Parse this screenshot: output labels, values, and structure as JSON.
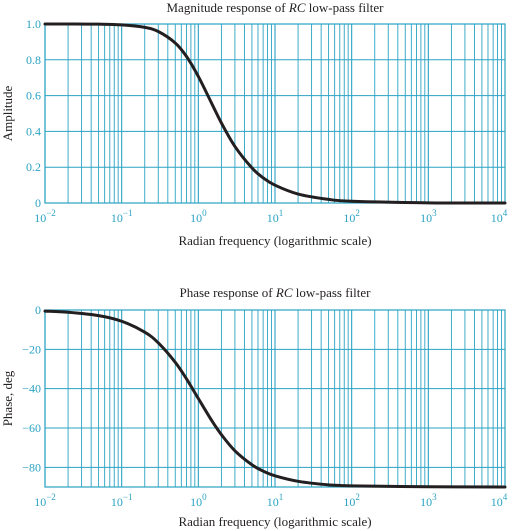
{
  "chart_data": [
    {
      "type": "line",
      "title_prefix": "Magnitude response of ",
      "title_emph": "RC",
      "title_suffix": " low-pass filter",
      "xlabel": "Radian frequency (logarithmic scale)",
      "ylabel": "Amplitude",
      "xscale": "log",
      "xlim": [
        0.01,
        10000
      ],
      "ylim": [
        0,
        1
      ],
      "grid": true,
      "x_ticks": [
        {
          "value": 0.01,
          "base": "10",
          "exp": "−2"
        },
        {
          "value": 0.1,
          "base": "10",
          "exp": "−1"
        },
        {
          "value": 1,
          "base": "10",
          "exp": "0"
        },
        {
          "value": 10,
          "base": "10",
          "exp": "1"
        },
        {
          "value": 100,
          "base": "10",
          "exp": "2"
        },
        {
          "value": 1000,
          "base": "10",
          "exp": "3"
        },
        {
          "value": 10000,
          "base": "10",
          "exp": "4"
        }
      ],
      "y_ticks": [
        {
          "value": 0,
          "label": "0"
        },
        {
          "value": 0.2,
          "label": "0.2"
        },
        {
          "value": 0.4,
          "label": "0.4"
        },
        {
          "value": 0.6,
          "label": "0.6"
        },
        {
          "value": 0.8,
          "label": "0.8"
        },
        {
          "value": 1,
          "label": "1.0"
        }
      ],
      "series": [
        {
          "x": [
            0.01,
            0.02,
            0.05,
            0.1,
            0.2,
            0.3,
            0.5,
            0.7,
            1,
            1.5,
            2,
            3,
            5,
            7,
            10,
            20,
            50,
            100,
            1000,
            10000
          ],
          "y": [
            1.0,
            1.0,
            0.999,
            0.995,
            0.981,
            0.958,
            0.894,
            0.819,
            0.707,
            0.555,
            0.447,
            0.316,
            0.196,
            0.141,
            0.0995,
            0.05,
            0.02,
            0.01,
            0.001,
            0.0001
          ]
        }
      ]
    },
    {
      "type": "line",
      "title_prefix": "Phase response of ",
      "title_emph": "RC",
      "title_suffix": " low-pass filter",
      "xlabel": "Radian frequency (logarithmic scale)",
      "ylabel": "Phase, deg",
      "xscale": "log",
      "xlim": [
        0.01,
        10000
      ],
      "ylim": [
        -90,
        0
      ],
      "grid": true,
      "x_ticks": [
        {
          "value": 0.01,
          "base": "10",
          "exp": "−2"
        },
        {
          "value": 0.1,
          "base": "10",
          "exp": "−1"
        },
        {
          "value": 1,
          "base": "10",
          "exp": "0"
        },
        {
          "value": 10,
          "base": "10",
          "exp": "1"
        },
        {
          "value": 100,
          "base": "10",
          "exp": "2"
        },
        {
          "value": 1000,
          "base": "10",
          "exp": "3"
        },
        {
          "value": 10000,
          "base": "10",
          "exp": "4"
        }
      ],
      "y_ticks": [
        {
          "value": 0,
          "label": "0"
        },
        {
          "value": -20,
          "label": "−20"
        },
        {
          "value": -40,
          "label": "−40"
        },
        {
          "value": -60,
          "label": "−60"
        },
        {
          "value": -80,
          "label": "−80"
        }
      ],
      "series": [
        {
          "x": [
            0.01,
            0.02,
            0.05,
            0.1,
            0.2,
            0.3,
            0.5,
            0.7,
            1,
            1.5,
            2,
            3,
            5,
            7,
            10,
            20,
            50,
            100,
            1000,
            10000
          ],
          "y": [
            -0.57,
            -1.15,
            -2.86,
            -5.71,
            -11.3,
            -16.7,
            -26.6,
            -35.0,
            -45.0,
            -56.3,
            -63.4,
            -71.6,
            -78.7,
            -81.9,
            -84.3,
            -87.1,
            -88.9,
            -89.4,
            -89.9,
            -90.0
          ]
        }
      ]
    }
  ],
  "colors": {
    "grid": "#2aa3c3",
    "curve": "#231f20",
    "tick_text": "#2aa3c3",
    "text": "#231f20"
  }
}
